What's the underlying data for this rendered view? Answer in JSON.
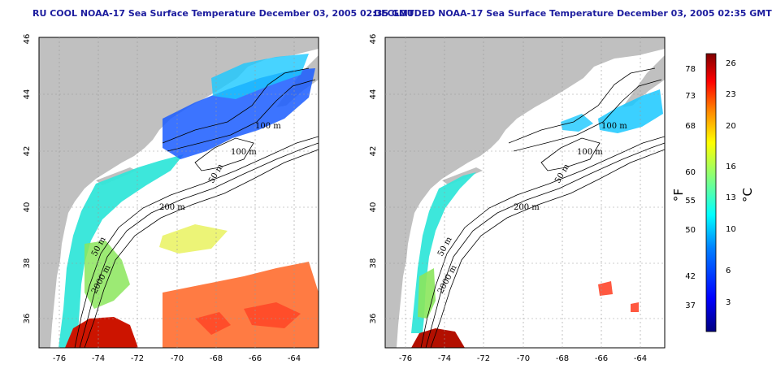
{
  "panels": [
    {
      "title": "RU COOL NOAA-17 Sea Surface Temperature December 03, 2005 02:35 GMT"
    },
    {
      "title": "DECLOUDED NOAA-17 Sea Surface Temperature December 03, 2005 02:35 GMT"
    }
  ],
  "axes": {
    "lon_ticks": [
      "-76",
      "-74",
      "-72",
      "-70",
      "-68",
      "-66",
      "-64"
    ],
    "lat_ticks": [
      "36",
      "38",
      "40",
      "42",
      "44",
      "46"
    ]
  },
  "contour_labels": {
    "left": [
      "100 m",
      "100 m",
      "50 m",
      "200 m",
      "50 m",
      "2000 m"
    ],
    "right": [
      "100 m",
      "100 m",
      "50 m",
      "200 m",
      "50 m",
      "2000 m"
    ]
  },
  "colorbar": {
    "fahrenheit_label": "°F",
    "celsius_label": "°C",
    "fahrenheit_ticks": [
      "78",
      "73",
      "68",
      "60",
      "55",
      "50",
      "42",
      "37"
    ],
    "celsius_ticks": [
      "26",
      "23",
      "20",
      "16",
      "13",
      "10",
      "6",
      "3"
    ],
    "colors": [
      "#00007f",
      "#0000ff",
      "#0080ff",
      "#00ffff",
      "#80ff80",
      "#ffff00",
      "#ff8000",
      "#ff0000",
      "#7f0000"
    ]
  },
  "colors": {
    "land": "#c0c0c0",
    "ocean": "#ffffff",
    "title": "#1c1c9e"
  }
}
